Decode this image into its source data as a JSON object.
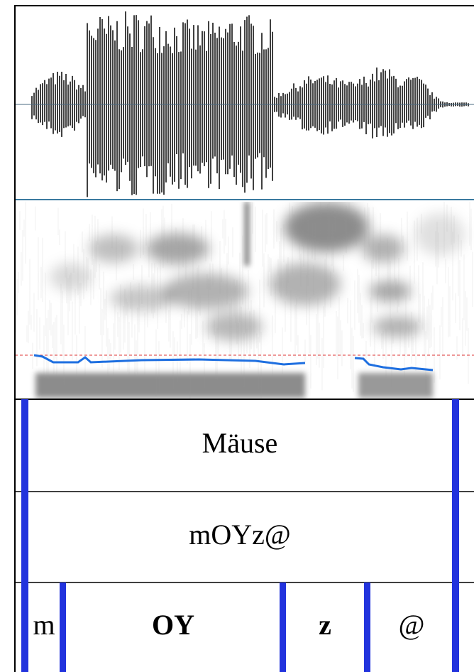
{
  "tiers": [
    {
      "intervals": [
        {
          "label": "Mäuse"
        }
      ]
    },
    {
      "intervals": [
        {
          "label": "mOYz@"
        }
      ]
    },
    {
      "intervals": [
        {
          "label": "m"
        },
        {
          "label": "OY"
        },
        {
          "label": "z"
        },
        {
          "label": "@"
        }
      ]
    }
  ]
}
